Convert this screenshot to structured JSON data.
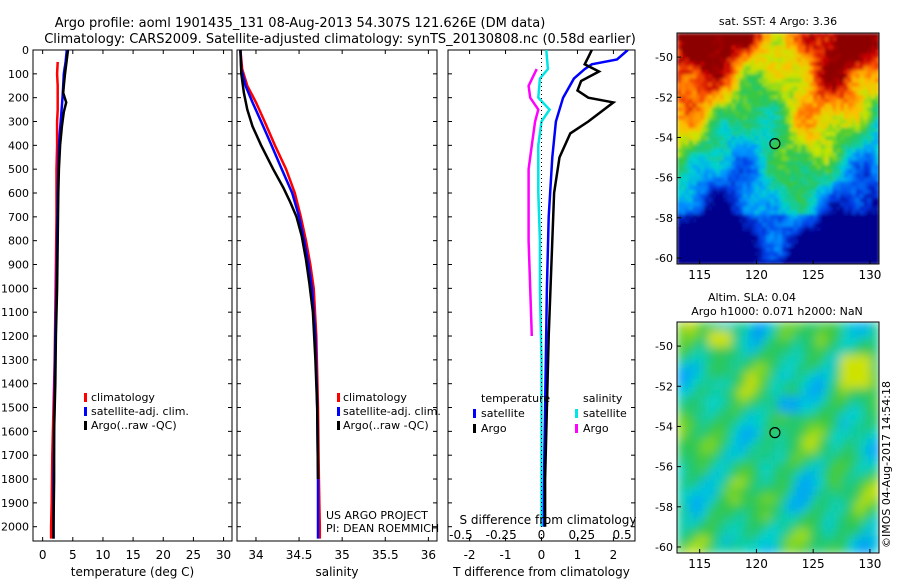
{
  "header": {
    "line1": "Argo profile: aoml 1901435_131 08-Aug-2013 54.307S 121.626E (DM data)",
    "line2": "Climatology: CARS2009. Satellite-adjusted climatology: synTS_20130808.nc (0.58d earlier)"
  },
  "credits": {
    "project": "US ARGO PROJECT",
    "pi": "PI: DEAN ROEMMICH",
    "stamp": "©IMOS 04-Aug-2017 14:54:18"
  },
  "colors": {
    "climatology": "#ff0000",
    "satellite": "#0000ff",
    "argo": "#000000",
    "sal_satellite": "#00e5e5",
    "sal_argo": "#ff00ff"
  },
  "chart_data": [
    {
      "id": "temperature",
      "type": "line",
      "xlabel": "temperature (deg C)",
      "xlim": [
        -1.6,
        31.4
      ],
      "xticks": [
        0,
        5,
        10,
        15,
        20,
        25,
        30
      ],
      "ylim": [
        2060,
        0
      ],
      "yticks": [
        0,
        100,
        200,
        300,
        400,
        500,
        600,
        700,
        800,
        900,
        1000,
        1100,
        1200,
        1300,
        1400,
        1500,
        1600,
        1700,
        1800,
        1900,
        2000
      ],
      "legend": [
        "climatology",
        "satellite-adj. clim.",
        "Argo(..raw -QC)"
      ],
      "series": [
        {
          "name": "climatology",
          "color": "#ff0000",
          "points": [
            [
              2.5,
              50
            ],
            [
              2.4,
              100
            ],
            [
              2.5,
              150
            ],
            [
              2.5,
              200
            ],
            [
              2.5,
              250
            ],
            [
              2.4,
              300
            ],
            [
              2.4,
              400
            ],
            [
              2.3,
              500
            ],
            [
              2.3,
              700
            ],
            [
              2.2,
              900
            ],
            [
              2.1,
              1100
            ],
            [
              2.0,
              1300
            ],
            [
              1.8,
              1500
            ],
            [
              1.6,
              1700
            ],
            [
              1.5,
              1900
            ],
            [
              1.4,
              2000
            ],
            [
              1.4,
              2050
            ]
          ]
        },
        {
          "name": "satellite-adj. clim.",
          "color": "#0000ff",
          "points": [
            [
              4.0,
              0
            ],
            [
              3.8,
              50
            ],
            [
              3.5,
              100
            ],
            [
              3.4,
              150
            ],
            [
              3.3,
              200
            ],
            [
              3.0,
              300
            ],
            [
              2.7,
              400
            ],
            [
              2.6,
              500
            ],
            [
              2.5,
              600
            ],
            [
              2.4,
              800
            ],
            [
              2.3,
              1000
            ],
            [
              2.1,
              1200
            ],
            [
              2.0,
              1400
            ],
            [
              1.9,
              1600
            ],
            [
              1.8,
              1800
            ],
            [
              1.8,
              2000
            ],
            [
              1.8,
              2050
            ]
          ]
        },
        {
          "name": "Argo(..raw -QC)",
          "color": "#000000",
          "points": [
            [
              4.2,
              0
            ],
            [
              4.0,
              40
            ],
            [
              3.7,
              100
            ],
            [
              3.5,
              150
            ],
            [
              3.4,
              180
            ],
            [
              3.9,
              220
            ],
            [
              3.5,
              260
            ],
            [
              3.2,
              320
            ],
            [
              2.9,
              400
            ],
            [
              2.7,
              500
            ],
            [
              2.6,
              600
            ],
            [
              2.5,
              800
            ],
            [
              2.4,
              1000
            ],
            [
              2.2,
              1200
            ],
            [
              2.1,
              1400
            ],
            [
              1.9,
              1600
            ],
            [
              1.9,
              1800
            ],
            [
              1.8,
              2000
            ],
            [
              1.8,
              2050
            ]
          ]
        }
      ]
    },
    {
      "id": "salinity",
      "type": "line",
      "xlabel": "salinity",
      "xlim": [
        33.78,
        36.1
      ],
      "xticks": [
        34,
        34.5,
        35,
        35.5,
        36
      ],
      "xticklabels": [
        "34",
        "34.5",
        "35",
        "35.5",
        "36"
      ],
      "ylim": [
        2060,
        0
      ],
      "legend": [
        "climatology",
        "satellite-adj. clim.",
        "Argo(..raw -QC)"
      ],
      "series": [
        {
          "name": "climatology",
          "color": "#ff0000",
          "points": [
            [
              33.82,
              0
            ],
            [
              33.84,
              80
            ],
            [
              33.9,
              150
            ],
            [
              34.0,
              220
            ],
            [
              34.1,
              300
            ],
            [
              34.22,
              400
            ],
            [
              34.35,
              500
            ],
            [
              34.45,
              600
            ],
            [
              34.52,
              700
            ],
            [
              34.58,
              800
            ],
            [
              34.63,
              900
            ],
            [
              34.67,
              1000
            ],
            [
              34.7,
              1200
            ],
            [
              34.72,
              1500
            ],
            [
              34.73,
              1800
            ],
            [
              34.74,
              2000
            ],
            [
              34.74,
              2050
            ]
          ]
        },
        {
          "name": "satellite-adj. clim.",
          "color": "#0000ff",
          "points": [
            [
              33.82,
              0
            ],
            [
              33.83,
              80
            ],
            [
              33.88,
              150
            ],
            [
              33.96,
              220
            ],
            [
              34.06,
              300
            ],
            [
              34.18,
              400
            ],
            [
              34.3,
              500
            ],
            [
              34.42,
              600
            ],
            [
              34.5,
              700
            ],
            [
              34.56,
              800
            ],
            [
              34.61,
              900
            ],
            [
              34.65,
              1000
            ],
            [
              34.69,
              1200
            ],
            [
              34.71,
              1500
            ],
            [
              34.72,
              1800
            ],
            [
              34.72,
              2000
            ],
            [
              34.72,
              2050
            ]
          ]
        },
        {
          "name": "Argo(..raw -QC)",
          "color": "#000000",
          "points": [
            [
              33.82,
              0
            ],
            [
              33.83,
              100
            ],
            [
              33.86,
              180
            ],
            [
              33.9,
              250
            ],
            [
              33.96,
              320
            ],
            [
              34.06,
              400
            ],
            [
              34.2,
              500
            ],
            [
              34.32,
              580
            ],
            [
              34.4,
              640
            ],
            [
              34.47,
              700
            ],
            [
              34.53,
              780
            ],
            [
              34.58,
              880
            ],
            [
              34.62,
              980
            ],
            [
              34.66,
              1100
            ],
            [
              34.69,
              1300
            ],
            [
              34.71,
              1500
            ],
            [
              34.72,
              1800
            ]
          ]
        }
      ]
    },
    {
      "id": "difference",
      "type": "line",
      "xlabel": "T difference from climatology",
      "x2label": "S difference from climatology",
      "xlim": [
        -2.6,
        2.6
      ],
      "xticks": [
        -2,
        -1,
        0,
        1,
        2
      ],
      "x2ticks": [
        -0.5,
        -0.25,
        0,
        0.25,
        0.5
      ],
      "x2ticklabels": [
        "-0.5",
        "-0.25",
        "0",
        "0.25",
        "0.5"
      ],
      "ylim": [
        2060,
        0
      ],
      "legend_groups": [
        {
          "title": "temperature",
          "items": [
            "satellite",
            "Argo"
          ]
        },
        {
          "title": "salinity",
          "items": [
            "satellite",
            "Argo"
          ]
        }
      ],
      "series": [
        {
          "name": "satellite",
          "group": "temperature",
          "color": "#0000ff",
          "points": [
            [
              2.4,
              0
            ],
            [
              2.1,
              40
            ],
            [
              1.4,
              60
            ],
            [
              1.2,
              80
            ],
            [
              0.9,
              120
            ],
            [
              0.6,
              200
            ],
            [
              0.4,
              300
            ],
            [
              0.3,
              450
            ],
            [
              0.2,
              700
            ],
            [
              0.15,
              1000
            ],
            [
              0.1,
              1500
            ],
            [
              0.05,
              2000
            ]
          ]
        },
        {
          "name": "Argo",
          "group": "temperature",
          "color": "#000000",
          "points": [
            [
              1.4,
              0
            ],
            [
              1.3,
              30
            ],
            [
              1.2,
              60
            ],
            [
              1.6,
              90
            ],
            [
              1.1,
              130
            ],
            [
              1.0,
              170
            ],
            [
              1.3,
              200
            ],
            [
              2.0,
              220
            ],
            [
              1.3,
              300
            ],
            [
              0.8,
              350
            ],
            [
              0.5,
              450
            ],
            [
              0.35,
              600
            ],
            [
              0.3,
              800
            ],
            [
              0.25,
              1000
            ],
            [
              0.2,
              1200
            ],
            [
              0.15,
              1500
            ],
            [
              0.1,
              1800
            ],
            [
              0.1,
              2000
            ]
          ]
        },
        {
          "name": "satellite",
          "group": "salinity",
          "color": "#00e5e5",
          "points": [
            [
              0.03,
              0
            ],
            [
              0.04,
              80
            ],
            [
              -0.01,
              120
            ],
            [
              -0.02,
              200
            ],
            [
              0.05,
              250
            ],
            [
              0.0,
              300
            ],
            [
              -0.02,
              400
            ],
            [
              -0.02,
              600
            ],
            [
              -0.01,
              800
            ],
            [
              -0.01,
              1000
            ],
            [
              0.0,
              1300
            ],
            [
              0.0,
              1600
            ],
            [
              0.0,
              2000
            ]
          ]
        },
        {
          "name": "Argo",
          "group": "salinity",
          "color": "#ff00ff",
          "points": [
            [
              -0.03,
              80
            ],
            [
              -0.08,
              150
            ],
            [
              -0.07,
              200
            ],
            [
              -0.02,
              250
            ],
            [
              -0.04,
              300
            ],
            [
              -0.06,
              400
            ],
            [
              -0.08,
              500
            ],
            [
              -0.08,
              600
            ],
            [
              -0.08,
              800
            ],
            [
              -0.07,
              1000
            ],
            [
              -0.06,
              1200
            ]
          ]
        }
      ]
    },
    {
      "id": "sst-map",
      "type": "heatmap",
      "title": "sat. SST: 4  Argo: 3.36",
      "xlim": [
        113,
        130.8
      ],
      "xticks": [
        115,
        120,
        125,
        130
      ],
      "ylim": [
        -60.3,
        -48.8
      ],
      "yticks": [
        -50,
        -52,
        -54,
        -56,
        -58,
        -60
      ],
      "argo_position": [
        121.626,
        -54.307
      ]
    },
    {
      "id": "sla-map",
      "type": "heatmap",
      "title_line1": "Altim. SLA: 0.04",
      "title_line2": "Argo h1000: 0.071  h2000: NaN",
      "xlim": [
        113,
        130.8
      ],
      "xticks": [
        115,
        120,
        125,
        130
      ],
      "ylim": [
        -60.3,
        -48.8
      ],
      "yticks": [
        -50,
        -52,
        -54,
        -56,
        -58,
        -60
      ],
      "argo_position": [
        121.626,
        -54.307
      ]
    }
  ]
}
